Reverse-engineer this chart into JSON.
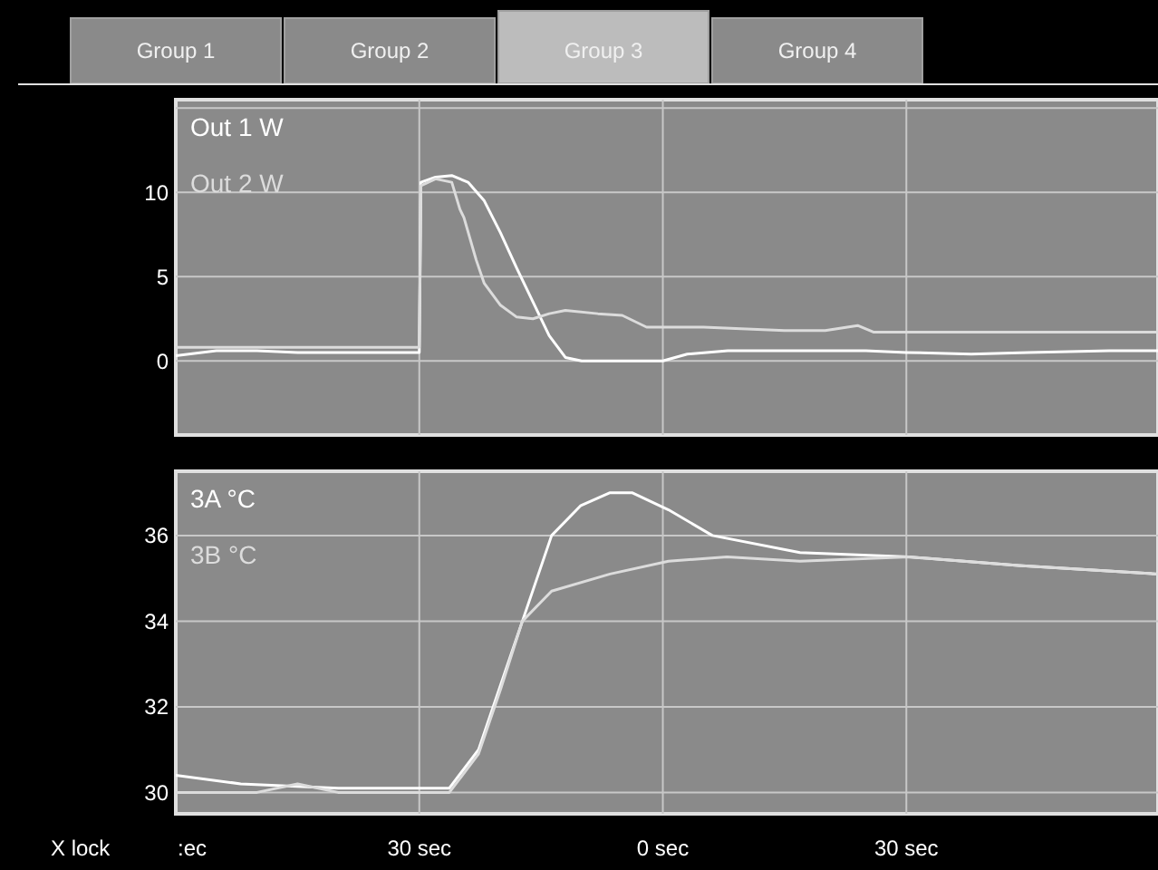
{
  "chart_data": [
    {
      "type": "line",
      "annotations": [
        "Group 1",
        "Group 2",
        "Group 3",
        "Group 4"
      ],
      "xlim": [
        -60,
        61
      ],
      "xticks": [
        {
          "value": -30,
          "label": null
        },
        {
          "value": 0,
          "label": null
        },
        {
          "value": 30,
          "label": null
        }
      ],
      "ylim": [
        -4.4,
        15.5
      ],
      "yticks": [
        0,
        5,
        10,
        {
          "value": 15,
          "label": null
        }
      ],
      "grid": true,
      "tick_labels": "y",
      "series": [
        {
          "name": "Out 1 W",
          "color": "#ffffff",
          "x": [
            -60,
            -55,
            -50,
            -45,
            -40,
            -35,
            -30,
            -29.8,
            -28,
            -26,
            -24,
            -22,
            -20,
            -18,
            -16,
            -14,
            -12,
            -10,
            0,
            3,
            8,
            15,
            25,
            30,
            38,
            45,
            55,
            61
          ],
          "values": [
            0.3,
            0.6,
            0.6,
            0.5,
            0.5,
            0.5,
            0.5,
            10.6,
            10.9,
            11,
            10.6,
            9.5,
            7.6,
            5.5,
            3.5,
            1.5,
            0.2,
            0,
            0,
            0.4,
            0.6,
            0.6,
            0.6,
            0.5,
            0.4,
            0.5,
            0.6,
            0.6
          ]
        },
        {
          "name": "Out 2 W",
          "color": "#dcdcdc",
          "x": [
            -60,
            -50,
            -40,
            -30,
            -29.8,
            -28,
            -26,
            -25,
            -24.5,
            -23,
            -22,
            -20,
            -18,
            -16,
            -14,
            -12,
            -8,
            -5,
            -2,
            5,
            15,
            20,
            24,
            26,
            35,
            45,
            61
          ],
          "values": [
            0.8,
            0.8,
            0.8,
            0.8,
            10.4,
            10.8,
            10.6,
            9,
            8.5,
            6,
            4.6,
            3.3,
            2.6,
            2.5,
            2.8,
            3.0,
            2.8,
            2.7,
            2.0,
            2.0,
            1.8,
            1.8,
            2.1,
            1.7,
            1.7,
            1.7,
            1.7
          ]
        }
      ]
    },
    {
      "type": "line",
      "annotations": [
        "X lock",
        ":ec"
      ],
      "xlim": [
        -60,
        61
      ],
      "xticks": [
        {
          "value": -30,
          "label": "30 sec"
        },
        {
          "value": 0,
          "label": "0 sec"
        },
        {
          "value": 30,
          "label": "30 sec"
        }
      ],
      "ylim": [
        29.5,
        37.5
      ],
      "yticks": [
        30,
        32,
        34,
        36
      ],
      "grid": true,
      "series": [
        {
          "name": "3A °C",
          "color": "#ffffff",
          "x": [
            -60,
            -52,
            -40,
            -26.3,
            -22.7,
            -20,
            -17.3,
            -13.7,
            -10.1,
            -6.5,
            -3.8,
            0.7,
            6.1,
            16.9,
            30.3,
            43.8,
            61
          ],
          "values": [
            30.4,
            30.2,
            30.1,
            30.1,
            31.0,
            32.5,
            34.0,
            36.0,
            36.7,
            37.0,
            37.0,
            36.6,
            36.0,
            35.6,
            35.5,
            35.3,
            35.1
          ]
        },
        {
          "name": "3B °C",
          "color": "#dcdcdc",
          "x": [
            -60,
            -50,
            -45,
            -40,
            -26.3,
            -22.7,
            -20,
            -17.3,
            -13.7,
            -6.5,
            0.7,
            7.9,
            16.9,
            30.3,
            43.8,
            61
          ],
          "values": [
            30.0,
            30.0,
            30.2,
            30.0,
            30.0,
            30.9,
            32.4,
            34.0,
            34.7,
            35.1,
            35.4,
            35.5,
            35.4,
            35.5,
            35.3,
            35.1
          ]
        }
      ]
    }
  ]
}
